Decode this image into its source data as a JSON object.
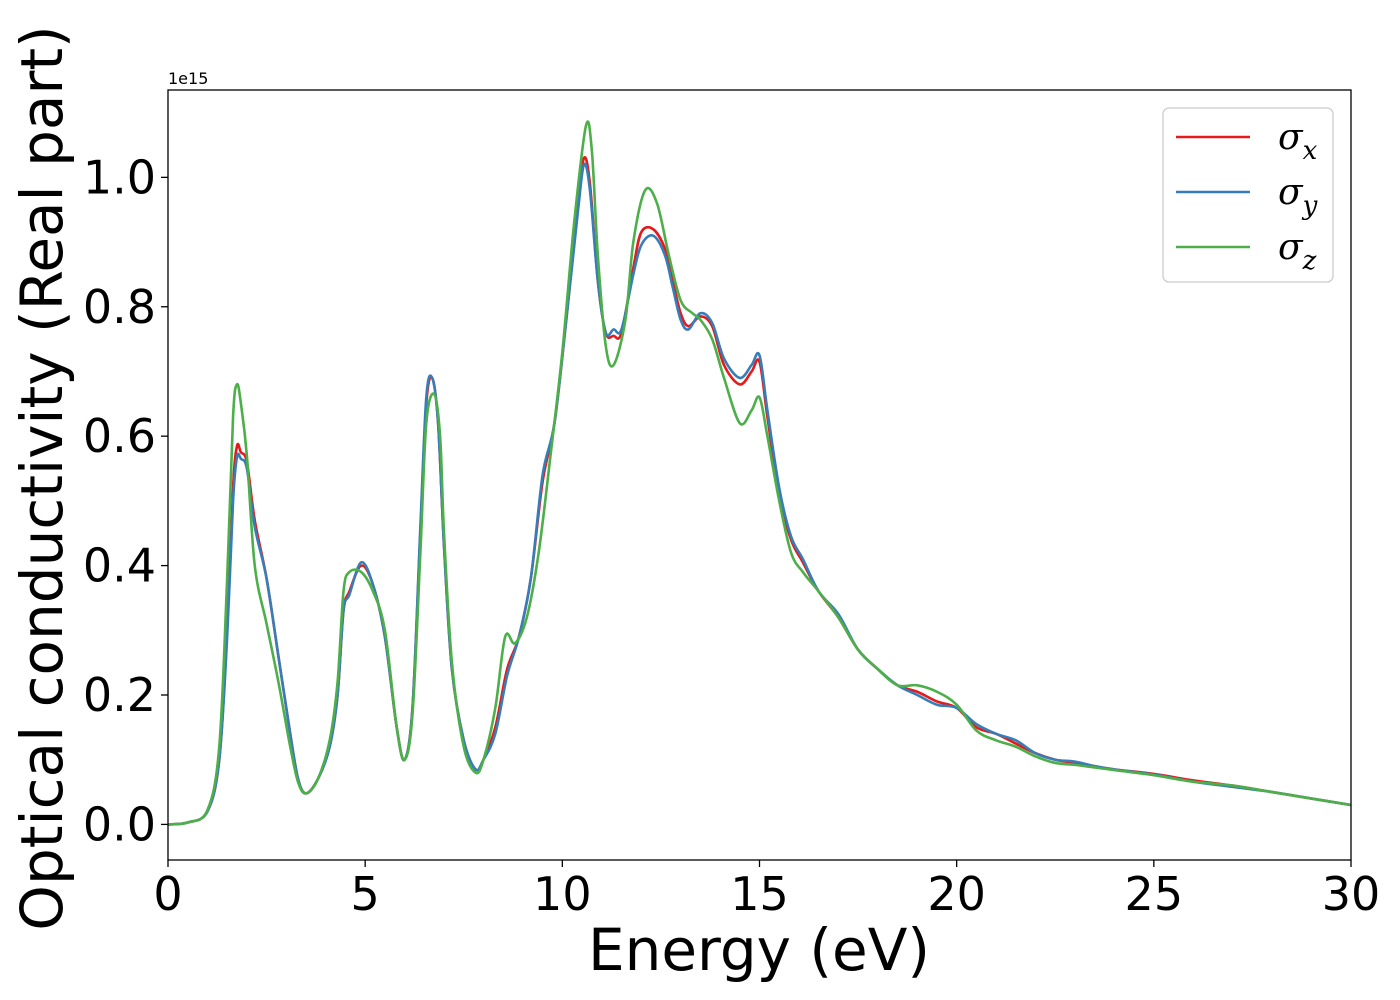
{
  "chart_data": {
    "type": "line",
    "xlabel": "Energy (eV)",
    "ylabel": "Optical conductivity (Real part)",
    "y_offset_label": "1e15",
    "xlim": [
      0,
      30
    ],
    "ylim": [
      -0.055,
      1.135
    ],
    "x_ticks": [
      0,
      5,
      10,
      15,
      20,
      25,
      30
    ],
    "x_tick_labels": [
      "0",
      "5",
      "10",
      "15",
      "20",
      "25",
      "30"
    ],
    "y_ticks": [
      0.0,
      0.2,
      0.4,
      0.6,
      0.8,
      1.0
    ],
    "y_tick_labels": [
      "0.0",
      "0.2",
      "0.4",
      "0.6",
      "0.8",
      "1.0"
    ],
    "grid": false,
    "legend_position": "top-right",
    "series": [
      {
        "name": "σ_x",
        "legend_base": "σ",
        "legend_sub": "x",
        "color": "#e41a1c",
        "points": [
          [
            0,
            0
          ],
          [
            0.5,
            0.003
          ],
          [
            1.0,
            0.02
          ],
          [
            1.3,
            0.1
          ],
          [
            1.5,
            0.3
          ],
          [
            1.65,
            0.52
          ],
          [
            1.75,
            0.585
          ],
          [
            1.85,
            0.575
          ],
          [
            2.0,
            0.56
          ],
          [
            2.2,
            0.47
          ],
          [
            2.5,
            0.38
          ],
          [
            2.8,
            0.26
          ],
          [
            3.1,
            0.14
          ],
          [
            3.3,
            0.07
          ],
          [
            3.5,
            0.048
          ],
          [
            3.8,
            0.07
          ],
          [
            4.1,
            0.12
          ],
          [
            4.3,
            0.2
          ],
          [
            4.45,
            0.33
          ],
          [
            4.6,
            0.36
          ],
          [
            4.9,
            0.4
          ],
          [
            5.2,
            0.37
          ],
          [
            5.5,
            0.29
          ],
          [
            5.8,
            0.15
          ],
          [
            6.0,
            0.1
          ],
          [
            6.2,
            0.18
          ],
          [
            6.4,
            0.45
          ],
          [
            6.55,
            0.65
          ],
          [
            6.7,
            0.69
          ],
          [
            6.85,
            0.62
          ],
          [
            7.0,
            0.43
          ],
          [
            7.2,
            0.24
          ],
          [
            7.5,
            0.13
          ],
          [
            7.8,
            0.085
          ],
          [
            8.0,
            0.1
          ],
          [
            8.3,
            0.15
          ],
          [
            8.6,
            0.24
          ],
          [
            8.9,
            0.29
          ],
          [
            9.2,
            0.38
          ],
          [
            9.5,
            0.53
          ],
          [
            9.8,
            0.62
          ],
          [
            10.1,
            0.78
          ],
          [
            10.4,
            0.96
          ],
          [
            10.55,
            1.03
          ],
          [
            10.7,
            0.99
          ],
          [
            10.9,
            0.84
          ],
          [
            11.1,
            0.76
          ],
          [
            11.3,
            0.755
          ],
          [
            11.5,
            0.76
          ],
          [
            11.8,
            0.86
          ],
          [
            12.0,
            0.915
          ],
          [
            12.3,
            0.92
          ],
          [
            12.6,
            0.89
          ],
          [
            12.8,
            0.84
          ],
          [
            13.0,
            0.79
          ],
          [
            13.2,
            0.77
          ],
          [
            13.5,
            0.785
          ],
          [
            13.8,
            0.77
          ],
          [
            14.1,
            0.71
          ],
          [
            14.5,
            0.68
          ],
          [
            14.8,
            0.7
          ],
          [
            15.0,
            0.715
          ],
          [
            15.2,
            0.63
          ],
          [
            15.5,
            0.51
          ],
          [
            15.8,
            0.44
          ],
          [
            16.1,
            0.405
          ],
          [
            16.5,
            0.36
          ],
          [
            17.0,
            0.32
          ],
          [
            17.5,
            0.27
          ],
          [
            18.0,
            0.24
          ],
          [
            18.5,
            0.215
          ],
          [
            19.0,
            0.205
          ],
          [
            19.5,
            0.19
          ],
          [
            20.0,
            0.18
          ],
          [
            20.5,
            0.15
          ],
          [
            21.0,
            0.14
          ],
          [
            21.5,
            0.125
          ],
          [
            22.0,
            0.11
          ],
          [
            22.5,
            0.1
          ],
          [
            23.0,
            0.095
          ],
          [
            23.5,
            0.09
          ],
          [
            24.0,
            0.085
          ],
          [
            25.0,
            0.078
          ],
          [
            26.0,
            0.068
          ],
          [
            27.0,
            0.06
          ],
          [
            28.0,
            0.05
          ],
          [
            29.0,
            0.04
          ],
          [
            30.0,
            0.03
          ]
        ]
      },
      {
        "name": "σ_y",
        "legend_base": "σ",
        "legend_sub": "y",
        "color": "#377eb8",
        "points": [
          [
            0,
            0
          ],
          [
            0.5,
            0.003
          ],
          [
            1.0,
            0.02
          ],
          [
            1.3,
            0.1
          ],
          [
            1.5,
            0.29
          ],
          [
            1.65,
            0.5
          ],
          [
            1.75,
            0.568
          ],
          [
            1.85,
            0.565
          ],
          [
            2.0,
            0.55
          ],
          [
            2.2,
            0.46
          ],
          [
            2.5,
            0.38
          ],
          [
            2.8,
            0.26
          ],
          [
            3.1,
            0.14
          ],
          [
            3.3,
            0.07
          ],
          [
            3.5,
            0.048
          ],
          [
            3.8,
            0.07
          ],
          [
            4.1,
            0.12
          ],
          [
            4.3,
            0.2
          ],
          [
            4.45,
            0.33
          ],
          [
            4.6,
            0.355
          ],
          [
            4.9,
            0.405
          ],
          [
            5.2,
            0.37
          ],
          [
            5.5,
            0.29
          ],
          [
            5.8,
            0.15
          ],
          [
            6.0,
            0.1
          ],
          [
            6.2,
            0.18
          ],
          [
            6.4,
            0.46
          ],
          [
            6.55,
            0.66
          ],
          [
            6.7,
            0.69
          ],
          [
            6.85,
            0.62
          ],
          [
            7.0,
            0.43
          ],
          [
            7.2,
            0.24
          ],
          [
            7.5,
            0.13
          ],
          [
            7.8,
            0.085
          ],
          [
            8.0,
            0.1
          ],
          [
            8.3,
            0.14
          ],
          [
            8.6,
            0.23
          ],
          [
            8.9,
            0.29
          ],
          [
            9.2,
            0.38
          ],
          [
            9.5,
            0.54
          ],
          [
            9.8,
            0.62
          ],
          [
            10.1,
            0.78
          ],
          [
            10.4,
            0.95
          ],
          [
            10.55,
            1.02
          ],
          [
            10.7,
            0.98
          ],
          [
            10.9,
            0.84
          ],
          [
            11.1,
            0.76
          ],
          [
            11.3,
            0.765
          ],
          [
            11.5,
            0.765
          ],
          [
            11.8,
            0.85
          ],
          [
            12.0,
            0.895
          ],
          [
            12.3,
            0.91
          ],
          [
            12.6,
            0.88
          ],
          [
            12.8,
            0.83
          ],
          [
            13.0,
            0.78
          ],
          [
            13.2,
            0.765
          ],
          [
            13.5,
            0.79
          ],
          [
            13.8,
            0.775
          ],
          [
            14.1,
            0.72
          ],
          [
            14.5,
            0.69
          ],
          [
            14.8,
            0.71
          ],
          [
            15.0,
            0.725
          ],
          [
            15.2,
            0.64
          ],
          [
            15.5,
            0.52
          ],
          [
            15.8,
            0.445
          ],
          [
            16.1,
            0.41
          ],
          [
            16.5,
            0.36
          ],
          [
            17.0,
            0.325
          ],
          [
            17.5,
            0.27
          ],
          [
            18.0,
            0.24
          ],
          [
            18.5,
            0.215
          ],
          [
            19.0,
            0.2
          ],
          [
            19.5,
            0.185
          ],
          [
            20.0,
            0.18
          ],
          [
            20.5,
            0.155
          ],
          [
            21.0,
            0.14
          ],
          [
            21.5,
            0.13
          ],
          [
            22.0,
            0.11
          ],
          [
            22.5,
            0.1
          ],
          [
            23.0,
            0.097
          ],
          [
            23.5,
            0.09
          ],
          [
            24.0,
            0.085
          ],
          [
            25.0,
            0.077
          ],
          [
            26.0,
            0.066
          ],
          [
            27.0,
            0.058
          ],
          [
            28.0,
            0.05
          ],
          [
            29.0,
            0.04
          ],
          [
            30.0,
            0.03
          ]
        ]
      },
      {
        "name": "σ_z",
        "legend_base": "σ",
        "legend_sub": "z",
        "color": "#4daf4a",
        "points": [
          [
            0,
            0
          ],
          [
            0.5,
            0.003
          ],
          [
            1.0,
            0.022
          ],
          [
            1.3,
            0.12
          ],
          [
            1.5,
            0.38
          ],
          [
            1.65,
            0.63
          ],
          [
            1.75,
            0.68
          ],
          [
            1.85,
            0.65
          ],
          [
            2.0,
            0.57
          ],
          [
            2.2,
            0.4
          ],
          [
            2.5,
            0.31
          ],
          [
            2.8,
            0.22
          ],
          [
            3.1,
            0.12
          ],
          [
            3.3,
            0.065
          ],
          [
            3.5,
            0.048
          ],
          [
            3.8,
            0.07
          ],
          [
            4.1,
            0.13
          ],
          [
            4.3,
            0.22
          ],
          [
            4.45,
            0.36
          ],
          [
            4.6,
            0.39
          ],
          [
            4.9,
            0.39
          ],
          [
            5.2,
            0.36
          ],
          [
            5.5,
            0.3
          ],
          [
            5.8,
            0.15
          ],
          [
            6.0,
            0.1
          ],
          [
            6.2,
            0.17
          ],
          [
            6.4,
            0.42
          ],
          [
            6.55,
            0.62
          ],
          [
            6.75,
            0.665
          ],
          [
            6.9,
            0.6
          ],
          [
            7.0,
            0.45
          ],
          [
            7.2,
            0.25
          ],
          [
            7.5,
            0.12
          ],
          [
            7.8,
            0.08
          ],
          [
            8.0,
            0.1
          ],
          [
            8.3,
            0.18
          ],
          [
            8.55,
            0.29
          ],
          [
            8.8,
            0.28
          ],
          [
            9.1,
            0.32
          ],
          [
            9.4,
            0.42
          ],
          [
            9.7,
            0.57
          ],
          [
            10.0,
            0.73
          ],
          [
            10.3,
            0.93
          ],
          [
            10.6,
            1.08
          ],
          [
            10.75,
            1.04
          ],
          [
            10.9,
            0.88
          ],
          [
            11.1,
            0.74
          ],
          [
            11.3,
            0.71
          ],
          [
            11.6,
            0.78
          ],
          [
            11.8,
            0.9
          ],
          [
            12.1,
            0.98
          ],
          [
            12.4,
            0.96
          ],
          [
            12.7,
            0.88
          ],
          [
            13.0,
            0.81
          ],
          [
            13.3,
            0.79
          ],
          [
            13.5,
            0.78
          ],
          [
            13.8,
            0.75
          ],
          [
            14.1,
            0.69
          ],
          [
            14.5,
            0.62
          ],
          [
            14.8,
            0.64
          ],
          [
            15.0,
            0.66
          ],
          [
            15.2,
            0.6
          ],
          [
            15.5,
            0.5
          ],
          [
            15.8,
            0.42
          ],
          [
            16.1,
            0.39
          ],
          [
            16.5,
            0.36
          ],
          [
            17.0,
            0.32
          ],
          [
            17.5,
            0.27
          ],
          [
            18.0,
            0.24
          ],
          [
            18.5,
            0.215
          ],
          [
            19.0,
            0.215
          ],
          [
            19.5,
            0.205
          ],
          [
            20.0,
            0.185
          ],
          [
            20.5,
            0.145
          ],
          [
            21.0,
            0.13
          ],
          [
            21.5,
            0.12
          ],
          [
            22.0,
            0.105
          ],
          [
            22.5,
            0.095
          ],
          [
            23.0,
            0.092
          ],
          [
            23.5,
            0.088
          ],
          [
            24.0,
            0.084
          ],
          [
            25.0,
            0.076
          ],
          [
            26.0,
            0.066
          ],
          [
            27.0,
            0.06
          ],
          [
            28.0,
            0.05
          ],
          [
            29.0,
            0.04
          ],
          [
            30.0,
            0.03
          ]
        ]
      }
    ]
  }
}
